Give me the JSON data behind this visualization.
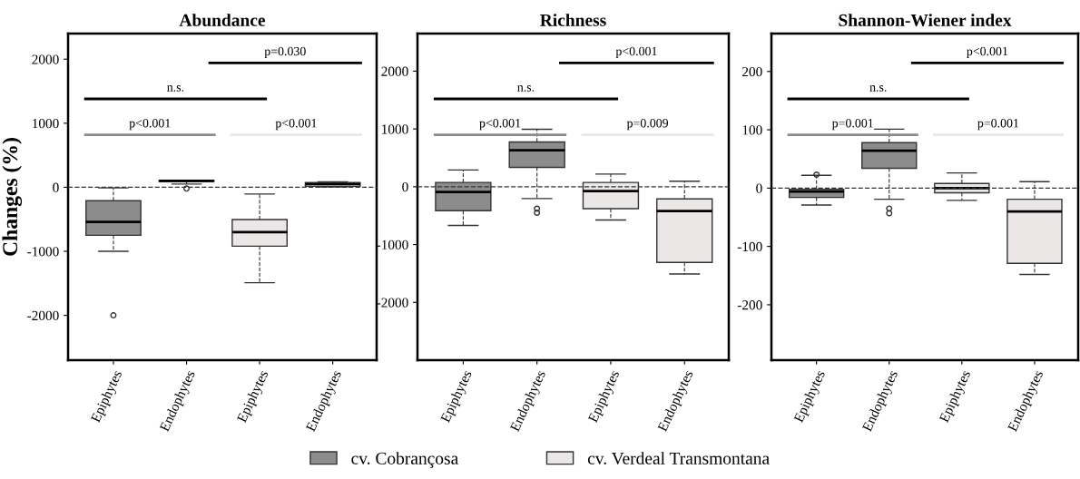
{
  "chart_data": [
    {
      "type": "box",
      "title": "Abundance",
      "ylabel": "Changes (%)",
      "categories": [
        "Epiphytes",
        "Endophytes",
        "Epiphytes",
        "Endophytes"
      ],
      "ylim": [
        -2700,
        2400
      ],
      "yticks": [
        -2000,
        -1000,
        0,
        1000,
        2000
      ],
      "legend": "bottom",
      "series": [
        {
          "name": "cv. Cobrançosa",
          "color": "#8c8c8c",
          "boxes": [
            {
              "low": -1000,
              "q1": -750,
              "median": -540,
              "q3": -210,
              "high": -10,
              "outliers": [
                -2000
              ]
            },
            {
              "low": 50,
              "q1": 90,
              "median": 100,
              "q3": 110,
              "high": 110,
              "outliers": [
                -20
              ]
            },
            null,
            null
          ]
        },
        {
          "name": "cv. Verdeal Transmontana",
          "color": "#ebe7e7",
          "boxes": [
            null,
            null,
            {
              "low": -1490,
              "q1": -920,
              "median": -700,
              "q3": -505,
              "high": -105
            },
            {
              "low": 5,
              "q1": 15,
              "median": 50,
              "q3": 75,
              "high": 85
            }
          ]
        }
      ],
      "ref_lines": [
        {
          "axis": "y",
          "value": 0,
          "line_style": "dashed",
          "color": "#333333"
        }
      ],
      "annotations": [
        "p<0.001",
        "p<0.001",
        "n.s.",
        "p=0.030"
      ]
    },
    {
      "type": "box",
      "title": "Richness",
      "categories": [
        "Epiphytes",
        "Endophytes",
        "Epiphytes",
        "Endophytes"
      ],
      "ylim": [
        -3000,
        2650
      ],
      "yticks": [
        -2000,
        -1000,
        0,
        1000,
        2000
      ],
      "series": [
        {
          "color": "#8c8c8c",
          "boxes": [
            {
              "low": -670,
              "q1": -415,
              "median": -90,
              "q3": 75,
              "high": 290
            },
            {
              "low": -205,
              "q1": 335,
              "median": 630,
              "q3": 775,
              "high": 995,
              "outliers": [
                -380,
                -450
              ]
            },
            null,
            null
          ]
        },
        {
          "color": "#ebe7e7",
          "boxes": [
            null,
            null,
            {
              "low": -575,
              "q1": -380,
              "median": -75,
              "q3": 75,
              "high": 220
            },
            {
              "low": -1510,
              "q1": -1310,
              "median": -420,
              "q3": -210,
              "high": 95
            }
          ]
        }
      ],
      "ref_lines": [
        {
          "axis": "y",
          "value": 0,
          "line_style": "dashed",
          "color": "#333333"
        }
      ],
      "annotations": [
        "p<0.001",
        "p=0.009",
        "n.s.",
        "p<0.001"
      ]
    },
    {
      "type": "box",
      "title": "Shannon-Wiener index",
      "categories": [
        "Epiphytes",
        "Endophytes",
        "Epiphytes",
        "Endophytes"
      ],
      "ylim": [
        -295,
        265
      ],
      "yticks": [
        -200,
        -100,
        0,
        100,
        200
      ],
      "series": [
        {
          "color": "#8c8c8c",
          "boxes": [
            {
              "low": -29,
              "q1": -16,
              "median": -6,
              "q3": -2,
              "high": 22,
              "outliers": [
                23
              ]
            },
            {
              "low": -19,
              "q1": 34,
              "median": 64,
              "q3": 78,
              "high": 101,
              "outliers": [
                -35,
                -43
              ]
            },
            null,
            null
          ]
        },
        {
          "color": "#ebe7e7",
          "boxes": [
            null,
            null,
            {
              "low": -21,
              "q1": -8,
              "median": 0,
              "q3": 8,
              "high": 26
            },
            {
              "low": -148,
              "q1": -129,
              "median": -40,
              "q3": -19,
              "high": 11
            }
          ]
        }
      ],
      "ref_lines": [
        {
          "axis": "y",
          "value": 0,
          "line_style": "dashed",
          "color": "#333333"
        }
      ],
      "annotations": [
        "p=0.001",
        "p=0.001",
        "n.s.",
        "p<0.001"
      ]
    }
  ]
}
